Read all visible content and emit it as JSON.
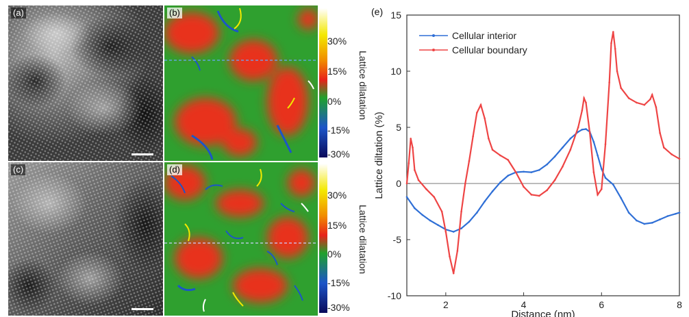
{
  "panels": {
    "a": {
      "label": "(a)"
    },
    "b": {
      "label": "(b)"
    },
    "c": {
      "label": "(c)"
    },
    "d": {
      "label": "(d)"
    },
    "e": {
      "label": "(e)"
    }
  },
  "colorbar": {
    "title": "Lattice dilatation",
    "ticks": [
      "30%",
      "15%",
      "0%",
      "-15%",
      "-30%"
    ],
    "colors": [
      "#ffffff",
      "#f3e800",
      "#f08c00",
      "#e8221a",
      "#1fa12c",
      "#1c55c8",
      "#0a0a5a"
    ]
  },
  "chart_data": {
    "type": "line",
    "xlabel": "Distance (nm)",
    "ylabel": "Lattice diltation (%)",
    "xlim": [
      1,
      8
    ],
    "ylim": [
      -10,
      15
    ],
    "xticks": [
      2,
      4,
      6,
      8
    ],
    "yticks": [
      -10,
      -5,
      0,
      5,
      10,
      15
    ],
    "legend_position": "top-left",
    "series": [
      {
        "name": "Cellular interior",
        "color": "#2f6fd6",
        "points": [
          [
            1.0,
            -1.2
          ],
          [
            1.2,
            -2.2
          ],
          [
            1.4,
            -2.8
          ],
          [
            1.6,
            -3.3
          ],
          [
            1.8,
            -3.7
          ],
          [
            2.0,
            -4.1
          ],
          [
            2.2,
            -4.3
          ],
          [
            2.4,
            -4.0
          ],
          [
            2.6,
            -3.4
          ],
          [
            2.8,
            -2.6
          ],
          [
            3.0,
            -1.6
          ],
          [
            3.2,
            -0.7
          ],
          [
            3.4,
            0.1
          ],
          [
            3.6,
            0.7
          ],
          [
            3.8,
            1.0
          ],
          [
            4.0,
            1.05
          ],
          [
            4.2,
            1.0
          ],
          [
            4.4,
            1.2
          ],
          [
            4.6,
            1.7
          ],
          [
            4.8,
            2.4
          ],
          [
            5.0,
            3.2
          ],
          [
            5.2,
            4.0
          ],
          [
            5.4,
            4.6
          ],
          [
            5.5,
            4.8
          ],
          [
            5.6,
            4.85
          ],
          [
            5.7,
            4.6
          ],
          [
            5.8,
            3.7
          ],
          [
            5.9,
            2.5
          ],
          [
            6.0,
            1.3
          ],
          [
            6.1,
            0.5
          ],
          [
            6.3,
            -0.1
          ],
          [
            6.5,
            -1.3
          ],
          [
            6.7,
            -2.6
          ],
          [
            6.9,
            -3.3
          ],
          [
            7.1,
            -3.6
          ],
          [
            7.3,
            -3.5
          ],
          [
            7.5,
            -3.2
          ],
          [
            7.7,
            -2.9
          ],
          [
            7.9,
            -2.7
          ],
          [
            8.0,
            -2.6
          ]
        ]
      },
      {
        "name": "Cellular boundary",
        "color": "#ee4444",
        "points": [
          [
            1.0,
            0.0
          ],
          [
            1.05,
            1.8
          ],
          [
            1.1,
            4.0
          ],
          [
            1.15,
            3.2
          ],
          [
            1.2,
            1.2
          ],
          [
            1.3,
            0.3
          ],
          [
            1.5,
            -0.5
          ],
          [
            1.7,
            -1.2
          ],
          [
            1.9,
            -2.5
          ],
          [
            2.0,
            -4.3
          ],
          [
            2.1,
            -6.5
          ],
          [
            2.2,
            -8.0
          ],
          [
            2.3,
            -6.0
          ],
          [
            2.4,
            -2.5
          ],
          [
            2.5,
            0.0
          ],
          [
            2.6,
            2.0
          ],
          [
            2.7,
            4.2
          ],
          [
            2.8,
            6.3
          ],
          [
            2.9,
            7.0
          ],
          [
            3.0,
            5.8
          ],
          [
            3.1,
            4.0
          ],
          [
            3.2,
            3.0
          ],
          [
            3.4,
            2.5
          ],
          [
            3.6,
            2.1
          ],
          [
            3.8,
            1.0
          ],
          [
            4.0,
            -0.3
          ],
          [
            4.2,
            -1.0
          ],
          [
            4.4,
            -1.1
          ],
          [
            4.6,
            -0.6
          ],
          [
            4.8,
            0.3
          ],
          [
            5.0,
            1.5
          ],
          [
            5.2,
            3.0
          ],
          [
            5.4,
            5.0
          ],
          [
            5.5,
            6.5
          ],
          [
            5.55,
            7.6
          ],
          [
            5.6,
            7.2
          ],
          [
            5.7,
            4.5
          ],
          [
            5.8,
            1.0
          ],
          [
            5.9,
            -1.0
          ],
          [
            6.0,
            -0.5
          ],
          [
            6.1,
            3.5
          ],
          [
            6.2,
            9.0
          ],
          [
            6.25,
            12.5
          ],
          [
            6.3,
            13.5
          ],
          [
            6.35,
            12.0
          ],
          [
            6.4,
            10.0
          ],
          [
            6.5,
            8.5
          ],
          [
            6.7,
            7.6
          ],
          [
            6.9,
            7.2
          ],
          [
            7.1,
            7.0
          ],
          [
            7.25,
            7.5
          ],
          [
            7.3,
            7.9
          ],
          [
            7.4,
            6.8
          ],
          [
            7.5,
            4.5
          ],
          [
            7.6,
            3.2
          ],
          [
            7.8,
            2.6
          ],
          [
            8.0,
            2.2
          ]
        ]
      }
    ]
  }
}
